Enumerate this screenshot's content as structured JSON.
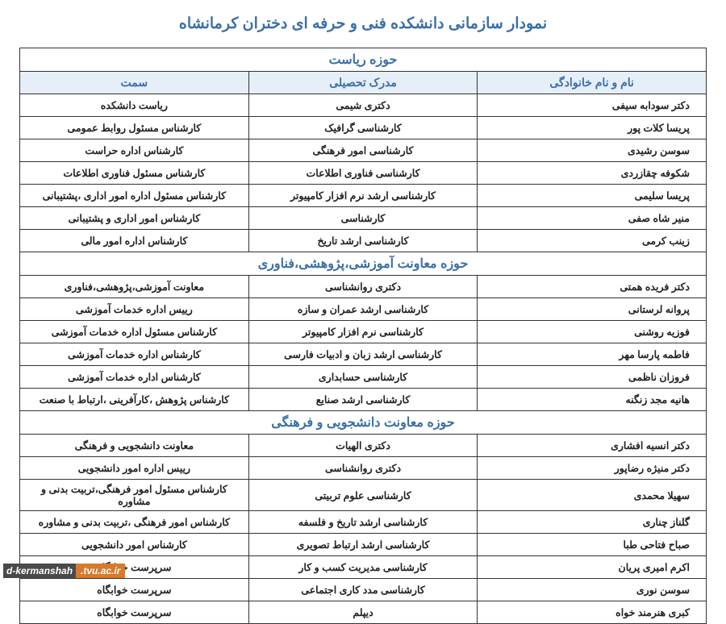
{
  "title": "نمودار سازمانی دانشکده فنی و حرفه ای دختران کرمانشاه",
  "columns": {
    "name": "نام و نام خانوادگی",
    "degree": "مدرک تحصیلی",
    "position": "سمت"
  },
  "sections": [
    {
      "header": "حوزه ریاست",
      "showColHeaders": true,
      "rows": [
        {
          "name": "دکتر سودابه سیفی",
          "degree": "دکتری شیمی",
          "position": "ریاست دانشکده"
        },
        {
          "name": "پریسا کلات پور",
          "degree": "کارشناسی گرافیک",
          "position": "کارشناس مسئول روابط عمومی"
        },
        {
          "name": "سوسن رشیدی",
          "degree": "کارشناسی امور فرهنگی",
          "position": "کارشناس اداره حراست"
        },
        {
          "name": "شکوفه چقازردی",
          "degree": "کارشناسی فناوری اطلاعات",
          "position": "کارشناس مسئول فناوری اطلاعات"
        },
        {
          "name": "پریسا سلیمی",
          "degree": "کارشناسی ارشد نرم افزار کامپیوتر",
          "position": "کارشناس مسئول  اداره امور اداری ،پشتیبانی"
        },
        {
          "name": "منیر شاه صفی",
          "degree": "کارشناسی",
          "position": "کارشناس امور اداری و پشتیبانی"
        },
        {
          "name": "زینب کرمی",
          "degree": "کارشناسی ارشد تاریخ",
          "position": "کارشناس اداره امور مالی"
        }
      ]
    },
    {
      "header": "حوزه معاونت آموزشی،پژوهشی،فناوری",
      "showColHeaders": false,
      "rows": [
        {
          "name": "دکتر فریده همتی",
          "degree": "دکتری روانشناسی",
          "position": "معاونت آموزشی،پژوهشی،فناوری"
        },
        {
          "name": "پروانه لرستانی",
          "degree": "کارشناسی ارشد عمران و سازه",
          "position": "رییس اداره خدمات آموزشی"
        },
        {
          "name": "فوزیه روشنی",
          "degree": "کارشناسی نرم افزار کامپیوتر",
          "position": "کارشناس مسئول اداره خدمات آموزشی"
        },
        {
          "name": "فاطمه پارسا مهر",
          "degree": "کارشناسی ارشد زبان و ادبیات فارسی",
          "position": "کارشناس اداره خدمات آموزشی"
        },
        {
          "name": "فروزان ناظمی",
          "degree": "کارشناسی حسابداری",
          "position": "کارشناس اداره خدمات آموزشی"
        },
        {
          "name": "هانیه مجد زنگنه",
          "degree": "کارشناسی ارشد صنایع",
          "position": "کارشناس پژوهش ،کارآفرینی ،ارتباط با صنعت"
        }
      ]
    },
    {
      "header": "حوزه معاونت دانشجویی و فرهنگی",
      "showColHeaders": false,
      "rows": [
        {
          "name": "دکتر انسیه افشاری",
          "degree": "دکتری الهیات",
          "position": "معاونت دانشجویی و فرهنگی"
        },
        {
          "name": "دکتر منیژه رضاپور",
          "degree": "دکتری روانشناسی",
          "position": "رییس اداره امور دانشجویی"
        },
        {
          "name": "سهیلا محمدی",
          "degree": "کارشناسی علوم تربیتی",
          "position": "کارشناس مسئول امور فرهنگی،تربیت بدنی و مشاوره"
        },
        {
          "name": "گلناز چناری",
          "degree": "کارشناسی ارشد تاریخ و فلسفه",
          "position": "کارشناس امور فرهنگی ،تربیت بدنی و مشاوره"
        },
        {
          "name": "صباح فتاحی طبا",
          "degree": "کارشناسی ارشد ارتباط تصویری",
          "position": "کارشناس امور دانشجویی"
        },
        {
          "name": "اکرم امیری پریان",
          "degree": "کارشناسی مدیریت کسب و کار",
          "position": "سرپرست خوابگاه"
        },
        {
          "name": "سوسن نوری",
          "degree": "کارشناسی مدد کاری اجتماعی",
          "position": "سرپرست خوابگاه"
        },
        {
          "name": "کبری هنرمند خواه",
          "degree": "دیپلم",
          "position": "سرپرست خوابگاه"
        }
      ]
    }
  ],
  "footer": {
    "dark": "d-kermanshah",
    "orange": ".tvu.ac.ir"
  },
  "styling": {
    "title_color": "#3b6fa8",
    "header_bg": "#e6eef7",
    "border_color": "#333333",
    "text_color": "#222222",
    "title_fontsize": 19,
    "cell_fontsize": 13,
    "footer_dark_bg": "#4a4a4a",
    "footer_orange_bg": "#d87a2a"
  }
}
